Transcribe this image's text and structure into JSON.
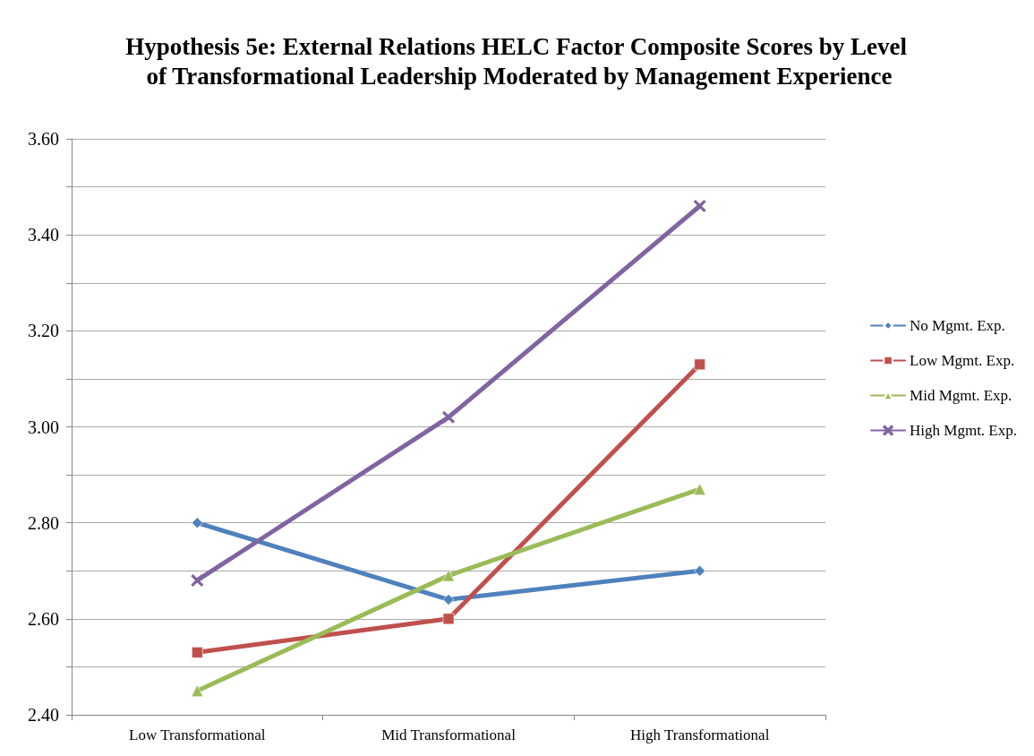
{
  "chart_data": {
    "type": "line",
    "title": "Hypothesis 5e: External Relations HELC Factor Composite Scores by Level of Transformational Leadership Moderated by Management Experience",
    "categories": [
      "Low Transformational",
      "Mid Transformational",
      "High Transformational"
    ],
    "series": [
      {
        "name": "No Mgmt. Exp.",
        "color": "#4f81bd",
        "marker": "diamond",
        "values": [
          2.8,
          2.64,
          2.7
        ]
      },
      {
        "name": "Low Mgmt. Exp.",
        "color": "#c0504d",
        "marker": "square",
        "values": [
          2.53,
          2.6,
          3.13
        ]
      },
      {
        "name": "Mid Mgmt. Exp.",
        "color": "#9bbb59",
        "marker": "triangle",
        "values": [
          2.45,
          2.69,
          2.87
        ]
      },
      {
        "name": "High Mgmt. Exp.",
        "color": "#8064a2",
        "marker": "cross",
        "values": [
          2.68,
          3.02,
          3.46
        ]
      }
    ],
    "ylim": [
      2.4,
      3.6
    ],
    "yticks": [
      {
        "value": 2.4,
        "label": "2.40"
      },
      {
        "value": 2.5,
        "label": null
      },
      {
        "value": 2.6,
        "label": "2.60"
      },
      {
        "value": 2.7,
        "label": null
      },
      {
        "value": 2.8,
        "label": "2.80"
      },
      {
        "value": 2.9,
        "label": null
      },
      {
        "value": 3.0,
        "label": "3.00"
      },
      {
        "value": 3.1,
        "label": null
      },
      {
        "value": 3.2,
        "label": "3.20"
      },
      {
        "value": 3.3,
        "label": null
      },
      {
        "value": 3.4,
        "label": "3.40"
      },
      {
        "value": 3.5,
        "label": null
      },
      {
        "value": 3.6,
        "label": "3.60"
      }
    ],
    "grid": "y",
    "legend": "right",
    "line_style": "solid"
  }
}
